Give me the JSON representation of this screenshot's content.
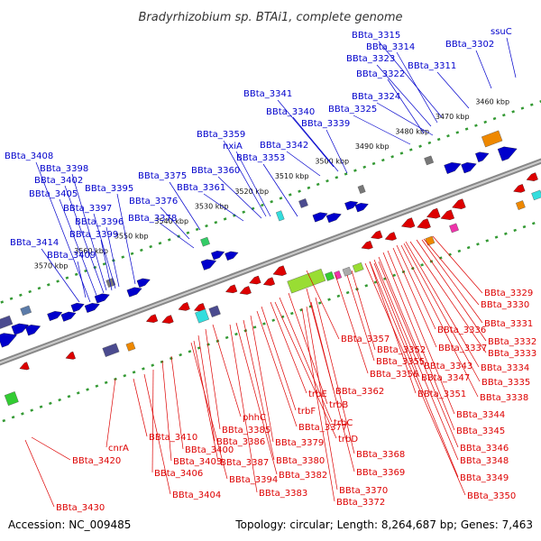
{
  "title": "Bradyrhizobium sp. BTAi1, complete genome",
  "footer": {
    "accession": "Accession: NC_009485",
    "summary": "Topology: circular; Length: 8,264,687 bp; Genes: 7,463"
  },
  "colors": {
    "forward": "#0000cc",
    "reverse": "#dd0000",
    "tick": "#339933",
    "backbone": "#888888"
  },
  "kbp_labels": [
    "3460 kbp",
    "3470 kbp",
    "3480 kbp",
    "3490 kbp",
    "3500 kbp",
    "3510 kbp",
    "3520 kbp",
    "3530 kbp",
    "3540 kbp",
    "3550 kbp",
    "3560 kbp",
    "3570 kbp"
  ],
  "forward_genes": [
    "ssuC",
    "BBta_3302",
    "BBta_3311",
    "BBta_3315",
    "BBta_3314",
    "BBta_3323",
    "BBta_3322",
    "BBta_3324",
    "BBta_3325",
    "BBta_3341",
    "BBta_3340",
    "BBta_3339",
    "BBta_3342",
    "BBta_3353",
    "nxiA",
    "BBta_3359",
    "BBta_3360",
    "BBta_3361",
    "BBta_3375",
    "BBta_3376",
    "BBta_3378",
    "BBta_3395",
    "BBta_3408",
    "BBta_3398",
    "BBta_3402",
    "BBta_3405",
    "BBta_3397",
    "BBta_3396",
    "BBta_3399",
    "BBta_3414",
    "BBta_3409"
  ],
  "reverse_genes": [
    "BBta_3329",
    "BBta_3330",
    "BBta_3331",
    "BBta_3336",
    "BBta_3332",
    "BBta_3337",
    "BBta_3333",
    "BBta_3357",
    "BBta_3352",
    "BBta_3334",
    "BBta_3355",
    "BBta_3343",
    "BBta_3347",
    "BBta_3335",
    "BBta_3356",
    "BBta_3351",
    "BBta_3338",
    "trbE",
    "BBta_3362",
    "trbB",
    "BBta_3344",
    "trbF",
    "trbC",
    "BBta_3345",
    "phhC",
    "BBta_3377",
    "BBta_3385",
    "trbD",
    "BBta_3410",
    "BBta_3386",
    "BBta_3379",
    "BBta_3346",
    "cnrA",
    "BBta_3400",
    "BBta_3368",
    "BBta_3348",
    "BBta_3420",
    "BBta_3403",
    "BBta_3387",
    "BBta_3380",
    "BBta_3369",
    "BBta_3349",
    "BBta_3406",
    "BBta_3394",
    "BBta_3382",
    "BBta_3404",
    "BBta_3383",
    "BBta_3370",
    "BBta_3350",
    "BBta_3372",
    "BBta_3430"
  ]
}
